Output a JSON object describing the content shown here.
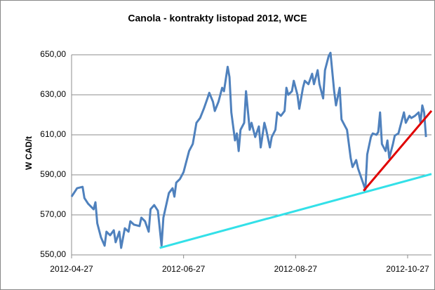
{
  "chart_data": {
    "type": "line",
    "title": "Canola - kontrakty listopad 2012, WCE",
    "ylabel": "W CAD/t",
    "color": "#4f81bd",
    "x": [
      "2012-04-27",
      "2012-04-30",
      "2012-05-03",
      "2012-05-04",
      "2012-05-06",
      "2012-05-09",
      "2012-05-10",
      "2012-05-11",
      "2012-05-13",
      "2012-05-15",
      "2012-05-16",
      "2012-05-18",
      "2012-05-20",
      "2012-05-21",
      "2012-05-23",
      "2012-05-24",
      "2012-05-26",
      "2012-05-28",
      "2012-05-29",
      "2012-05-31",
      "2012-06-03",
      "2012-06-04",
      "2012-06-06",
      "2012-06-08",
      "2012-06-09",
      "2012-06-11",
      "2012-06-13",
      "2012-06-15",
      "2012-06-16",
      "2012-06-19",
      "2012-06-21",
      "2012-06-22",
      "2012-06-23",
      "2012-06-25",
      "2012-06-27",
      "2012-06-28",
      "2012-06-30",
      "2012-07-02",
      "2012-07-04",
      "2012-07-06",
      "2012-07-08",
      "2012-07-10",
      "2012-07-11",
      "2012-07-13",
      "2012-07-14",
      "2012-07-16",
      "2012-07-18",
      "2012-07-19",
      "2012-07-21",
      "2012-07-22",
      "2012-07-23",
      "2012-07-25",
      "2012-07-26",
      "2012-07-27",
      "2012-07-28",
      "2012-07-30",
      "2012-07-31",
      "2012-08-02",
      "2012-08-03",
      "2012-08-05",
      "2012-08-07",
      "2012-08-08",
      "2012-08-10",
      "2012-08-11",
      "2012-08-13",
      "2012-08-14",
      "2012-08-16",
      "2012-08-17",
      "2012-08-19",
      "2012-08-21",
      "2012-08-22",
      "2012-08-23",
      "2012-08-25",
      "2012-08-26",
      "2012-08-28",
      "2012-08-29",
      "2012-08-31",
      "2012-09-01",
      "2012-09-03",
      "2012-09-05",
      "2012-09-06",
      "2012-09-08",
      "2012-09-09",
      "2012-09-11",
      "2012-09-12",
      "2012-09-14",
      "2012-09-15",
      "2012-09-17",
      "2012-09-18",
      "2012-09-20",
      "2012-09-21",
      "2012-09-23",
      "2012-09-24",
      "2012-09-26",
      "2012-09-27",
      "2012-09-29",
      "2012-09-30",
      "2012-10-02",
      "2012-10-04",
      "2012-10-05",
      "2012-10-07",
      "2012-10-08",
      "2012-10-10",
      "2012-10-11",
      "2012-10-12",
      "2012-10-13",
      "2012-10-15",
      "2012-10-16",
      "2012-10-17",
      "2012-10-19",
      "2012-10-20",
      "2012-10-22",
      "2012-10-23",
      "2012-10-25",
      "2012-10-26",
      "2012-10-28",
      "2012-10-29",
      "2012-10-31",
      "2012-11-02",
      "2012-11-03",
      "2012-11-04",
      "2012-11-05",
      "2012-11-06"
    ],
    "values": [
      579.1,
      583.3,
      584,
      578.4,
      575.6,
      572.8,
      576.3,
      565.8,
      558.8,
      554.6,
      561.6,
      559.8,
      562.3,
      556.3,
      561.6,
      553.5,
      563.3,
      561.6,
      566.8,
      565.1,
      564.4,
      568.6,
      566.8,
      561.6,
      572.8,
      574.9,
      572.1,
      554.6,
      568.6,
      580.9,
      583.3,
      579.1,
      586.1,
      587.9,
      591.4,
      594.9,
      601.9,
      605.4,
      616,
      618.4,
      623,
      628.2,
      631,
      626.5,
      621.9,
      626.5,
      633.5,
      631.8,
      644,
      638.8,
      621.2,
      607.2,
      610.7,
      601.9,
      612.5,
      616,
      631.8,
      612.5,
      616,
      608.9,
      614.2,
      603.7,
      616,
      612.5,
      603.7,
      608.9,
      612.5,
      621.2,
      619.5,
      621.9,
      633.5,
      630,
      631.8,
      637,
      630,
      623,
      633.5,
      637,
      635.3,
      640.5,
      635.3,
      642.3,
      635.3,
      628.2,
      642.3,
      649.3,
      651,
      631.8,
      624.7,
      633.5,
      617.7,
      614.2,
      612.5,
      598.4,
      593.9,
      597.4,
      593.2,
      587.9,
      582.6,
      600.2,
      608.9,
      610.7,
      610,
      611.4,
      621.2,
      605.4,
      601.9,
      607.2,
      598.4,
      605.4,
      609.6,
      610.7,
      614.2,
      621.2,
      616,
      619.5,
      618.4,
      619.5,
      621.2,
      616,
      624.7,
      621.2,
      608.9
    ],
    "trendlines": [
      {
        "color": "#33e0e8",
        "x": [
          "2012-06-14",
          "2012-11-09"
        ],
        "values": [
          553.5,
          590.4
        ]
      },
      {
        "color": "#e00000",
        "x": [
          "2012-10-03",
          "2012-11-09"
        ],
        "values": [
          582,
          622
        ]
      }
    ],
    "xlim": [
      "2012-04-27",
      "2012-11-09"
    ],
    "xticks": [
      "2012-04-27",
      "2012-06-27",
      "2012-08-27",
      "2012-10-27"
    ],
    "ylim": [
      550,
      650
    ],
    "yticks": [
      {
        "value": 550,
        "label": "550,00"
      },
      {
        "value": 570,
        "label": "570,00"
      },
      {
        "value": 590,
        "label": "590,00"
      },
      {
        "value": 610,
        "label": "610,00"
      },
      {
        "value": 630,
        "label": "630,00"
      },
      {
        "value": 650,
        "label": "650,00"
      }
    ],
    "grid": true
  }
}
